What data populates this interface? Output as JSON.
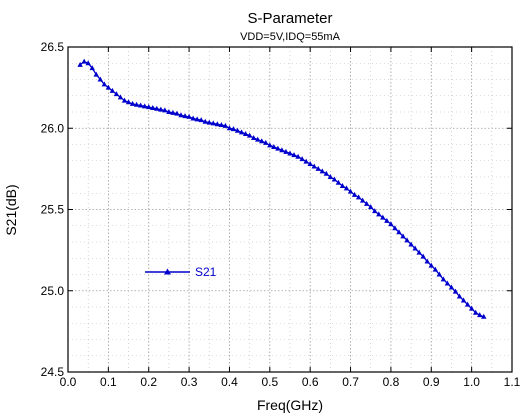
{
  "chart_data": {
    "type": "line",
    "title": "S-Parameter",
    "subtitle": "VDD=5V,IDQ=55mA",
    "xlabel": "Freq(GHz)",
    "ylabel": "S21(dB)",
    "xlim": [
      0.0,
      1.1
    ],
    "ylim": [
      24.5,
      26.5
    ],
    "xticks": [
      "0.0",
      "0.1",
      "0.2",
      "0.3",
      "0.4",
      "0.5",
      "0.6",
      "0.7",
      "0.8",
      "0.9",
      "1.0",
      "1.1"
    ],
    "yticks": [
      "24.5",
      "25.0",
      "25.5",
      "26.0",
      "26.5"
    ],
    "grid": true,
    "legend_position": "lower-left",
    "series": [
      {
        "name": "S21",
        "color": "#0000cc",
        "marker": "triangle",
        "x": [
          0.03,
          0.04,
          0.05,
          0.06,
          0.07,
          0.08,
          0.09,
          0.1,
          0.11,
          0.12,
          0.13,
          0.14,
          0.15,
          0.16,
          0.17,
          0.18,
          0.19,
          0.2,
          0.21,
          0.22,
          0.23,
          0.24,
          0.25,
          0.26,
          0.27,
          0.28,
          0.29,
          0.3,
          0.31,
          0.32,
          0.33,
          0.34,
          0.35,
          0.36,
          0.37,
          0.38,
          0.39,
          0.4,
          0.41,
          0.42,
          0.43,
          0.44,
          0.45,
          0.46,
          0.47,
          0.48,
          0.49,
          0.5,
          0.51,
          0.52,
          0.53,
          0.54,
          0.55,
          0.56,
          0.57,
          0.58,
          0.59,
          0.6,
          0.61,
          0.62,
          0.63,
          0.64,
          0.65,
          0.66,
          0.67,
          0.68,
          0.69,
          0.7,
          0.71,
          0.72,
          0.73,
          0.74,
          0.75,
          0.76,
          0.77,
          0.78,
          0.79,
          0.8,
          0.81,
          0.82,
          0.83,
          0.84,
          0.85,
          0.86,
          0.87,
          0.88,
          0.89,
          0.9,
          0.91,
          0.92,
          0.93,
          0.94,
          0.95,
          0.96,
          0.97,
          0.98,
          0.99,
          1.0,
          1.01,
          1.02,
          1.03
        ],
        "y": [
          26.39,
          26.41,
          26.4,
          26.37,
          26.33,
          26.3,
          26.27,
          26.25,
          26.23,
          26.21,
          26.19,
          26.17,
          26.16,
          26.15,
          26.145,
          26.14,
          26.135,
          26.13,
          26.125,
          26.12,
          26.115,
          26.11,
          26.1,
          26.095,
          26.09,
          26.08,
          26.075,
          26.07,
          26.06,
          26.055,
          26.05,
          26.04,
          26.035,
          26.03,
          26.025,
          26.02,
          26.015,
          26.0,
          25.995,
          25.985,
          25.975,
          25.965,
          25.955,
          25.94,
          25.93,
          25.92,
          25.91,
          25.895,
          25.885,
          25.875,
          25.865,
          25.855,
          25.845,
          25.835,
          25.825,
          25.81,
          25.795,
          25.78,
          25.765,
          25.75,
          25.735,
          25.72,
          25.7,
          25.685,
          25.665,
          25.645,
          25.63,
          25.61,
          25.59,
          25.575,
          25.555,
          25.535,
          25.515,
          25.49,
          25.47,
          25.45,
          25.43,
          25.41,
          25.385,
          25.36,
          25.335,
          25.31,
          25.285,
          25.26,
          25.235,
          25.21,
          25.18,
          25.155,
          25.13,
          25.1,
          25.07,
          25.045,
          25.02,
          24.995,
          24.965,
          24.94,
          24.915,
          24.89,
          24.865,
          24.85,
          24.84
        ]
      }
    ]
  }
}
